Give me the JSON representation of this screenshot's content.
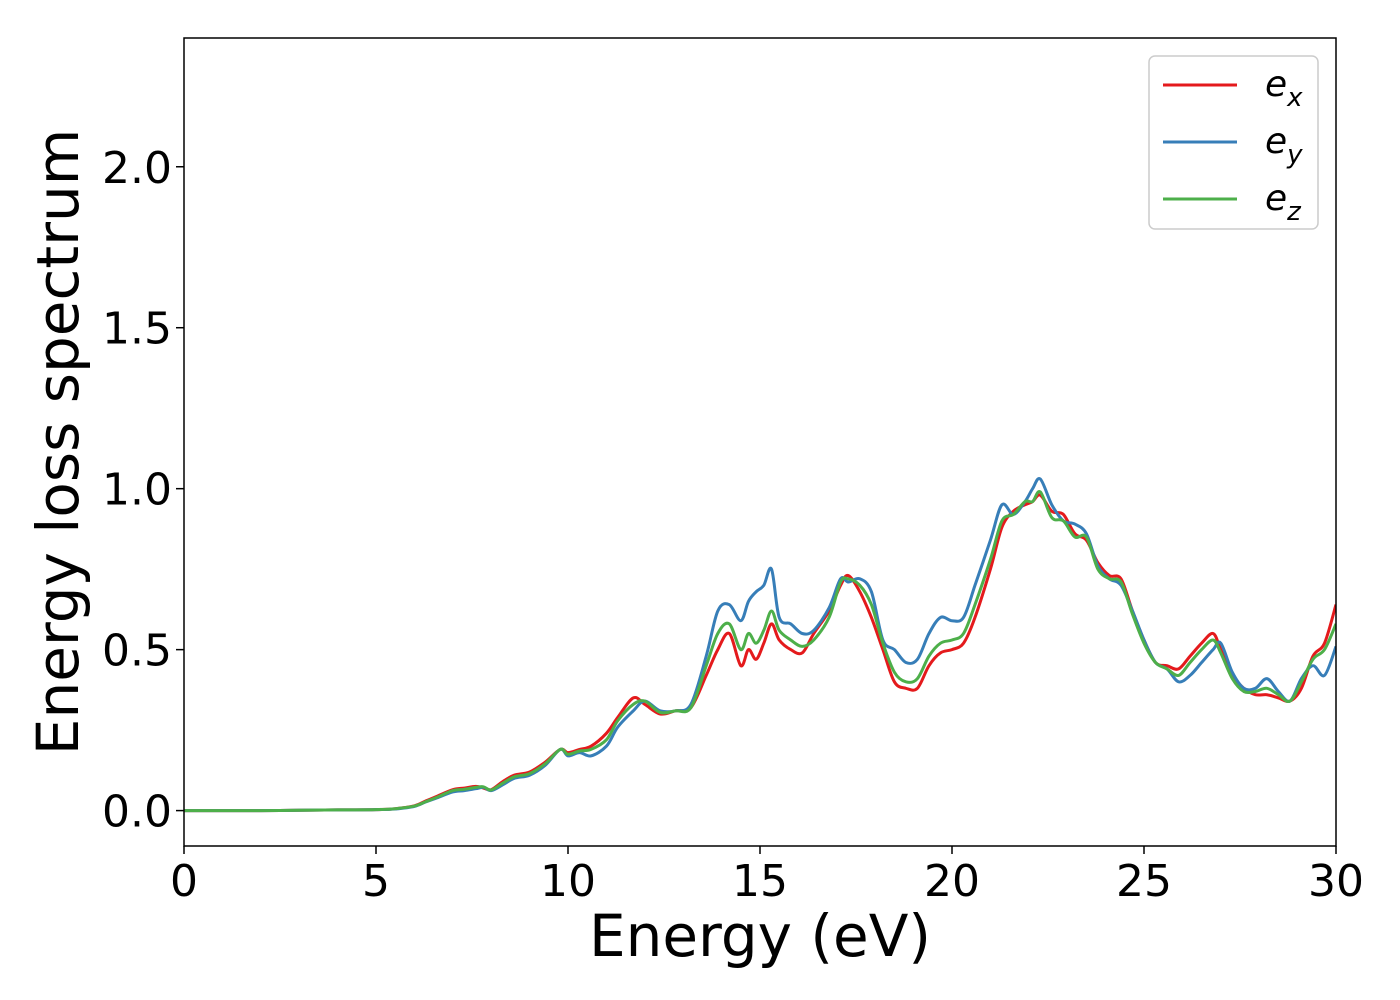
{
  "chart_data": {
    "type": "line",
    "xlabel": "Energy (eV)",
    "ylabel": "Energy loss spectrum",
    "xlim": [
      0,
      30
    ],
    "ylim": [
      -0.11,
      2.4
    ],
    "xticks": [
      0,
      5,
      10,
      15,
      20,
      25,
      30
    ],
    "xtick_labels": [
      "0",
      "5",
      "10",
      "15",
      "20",
      "25",
      "30"
    ],
    "yticks": [
      0.0,
      0.5,
      1.0,
      1.5,
      2.0
    ],
    "ytick_labels": [
      "0.0",
      "0.5",
      "1.0",
      "1.5",
      "2.0"
    ],
    "grid": false,
    "legend_position": "top-right",
    "series": [
      {
        "name": "e",
        "subscript": "x",
        "color": "#e41a1c",
        "x": [
          0,
          1,
          2,
          3,
          4,
          5,
          5.5,
          6,
          6.3,
          6.6,
          7,
          7.3,
          7.6,
          7.8,
          8,
          8.3,
          8.6,
          9,
          9.4,
          9.8,
          10,
          10.3,
          10.6,
          11,
          11.3,
          11.7,
          12,
          12.4,
          12.8,
          13.2,
          13.6,
          13.9,
          14.2,
          14.5,
          14.7,
          14.9,
          15.1,
          15.3,
          15.5,
          15.8,
          16.1,
          16.4,
          16.8,
          17.1,
          17.3,
          17.6,
          17.9,
          18.2,
          18.5,
          18.8,
          19.1,
          19.4,
          19.7,
          20,
          20.3,
          20.6,
          21,
          21.3,
          21.6,
          21.9,
          22.1,
          22.3,
          22.6,
          22.9,
          23.2,
          23.5,
          23.8,
          24.1,
          24.4,
          24.7,
          25,
          25.3,
          25.6,
          25.9,
          26.2,
          26.5,
          26.8,
          27,
          27.3,
          27.6,
          27.9,
          28.2,
          28.5,
          28.8,
          29.1,
          29.4,
          29.7,
          30
        ],
        "y": [
          0,
          0,
          0,
          0.001,
          0.002,
          0.003,
          0.006,
          0.015,
          0.03,
          0.045,
          0.065,
          0.07,
          0.075,
          0.07,
          0.065,
          0.09,
          0.11,
          0.12,
          0.15,
          0.19,
          0.18,
          0.19,
          0.2,
          0.24,
          0.29,
          0.35,
          0.33,
          0.3,
          0.31,
          0.32,
          0.42,
          0.5,
          0.55,
          0.45,
          0.5,
          0.47,
          0.52,
          0.58,
          0.53,
          0.5,
          0.49,
          0.55,
          0.62,
          0.7,
          0.73,
          0.68,
          0.6,
          0.5,
          0.4,
          0.38,
          0.38,
          0.45,
          0.49,
          0.5,
          0.52,
          0.6,
          0.75,
          0.88,
          0.93,
          0.95,
          0.96,
          0.98,
          0.93,
          0.92,
          0.86,
          0.84,
          0.77,
          0.73,
          0.72,
          0.62,
          0.53,
          0.46,
          0.45,
          0.44,
          0.48,
          0.52,
          0.55,
          0.5,
          0.42,
          0.38,
          0.36,
          0.36,
          0.35,
          0.34,
          0.38,
          0.48,
          0.52,
          0.64
        ]
      },
      {
        "name": "e",
        "subscript": "y",
        "color": "#377eb8",
        "x": [
          0,
          1,
          2,
          3,
          4,
          5,
          5.5,
          6,
          6.3,
          6.6,
          7,
          7.3,
          7.6,
          7.8,
          8,
          8.3,
          8.6,
          9,
          9.4,
          9.8,
          10,
          10.3,
          10.6,
          11,
          11.3,
          11.7,
          12,
          12.4,
          12.8,
          13.2,
          13.6,
          13.9,
          14.2,
          14.5,
          14.7,
          14.9,
          15.1,
          15.3,
          15.5,
          15.8,
          16.1,
          16.4,
          16.8,
          17.1,
          17.3,
          17.6,
          17.9,
          18.2,
          18.5,
          18.8,
          19.1,
          19.4,
          19.7,
          20,
          20.3,
          20.6,
          21,
          21.3,
          21.6,
          21.9,
          22.1,
          22.3,
          22.6,
          22.9,
          23.2,
          23.5,
          23.8,
          24.1,
          24.4,
          24.7,
          25,
          25.3,
          25.6,
          25.9,
          26.2,
          26.5,
          26.8,
          27,
          27.3,
          27.6,
          27.9,
          28.2,
          28.5,
          28.8,
          29.1,
          29.4,
          29.7,
          30
        ],
        "y": [
          0,
          0,
          0,
          0.001,
          0.002,
          0.003,
          0.005,
          0.013,
          0.027,
          0.04,
          0.058,
          0.062,
          0.068,
          0.072,
          0.062,
          0.08,
          0.1,
          0.11,
          0.14,
          0.19,
          0.17,
          0.18,
          0.17,
          0.2,
          0.26,
          0.31,
          0.34,
          0.31,
          0.31,
          0.33,
          0.48,
          0.62,
          0.64,
          0.59,
          0.65,
          0.68,
          0.7,
          0.75,
          0.6,
          0.58,
          0.55,
          0.56,
          0.63,
          0.72,
          0.71,
          0.72,
          0.68,
          0.53,
          0.5,
          0.46,
          0.47,
          0.55,
          0.6,
          0.59,
          0.6,
          0.7,
          0.84,
          0.95,
          0.92,
          0.96,
          1.0,
          1.03,
          0.95,
          0.9,
          0.89,
          0.86,
          0.76,
          0.72,
          0.7,
          0.62,
          0.53,
          0.46,
          0.44,
          0.4,
          0.42,
          0.46,
          0.5,
          0.52,
          0.43,
          0.38,
          0.38,
          0.41,
          0.37,
          0.34,
          0.41,
          0.45,
          0.42,
          0.51
        ]
      },
      {
        "name": "e",
        "subscript": "z",
        "color": "#4daf4a",
        "x": [
          0,
          1,
          2,
          3,
          4,
          5,
          5.5,
          6,
          6.3,
          6.6,
          7,
          7.3,
          7.6,
          7.8,
          8,
          8.3,
          8.6,
          9,
          9.4,
          9.8,
          10,
          10.3,
          10.6,
          11,
          11.3,
          11.7,
          12,
          12.4,
          12.8,
          13.2,
          13.6,
          13.9,
          14.2,
          14.5,
          14.7,
          14.9,
          15.1,
          15.3,
          15.5,
          15.8,
          16.1,
          16.4,
          16.8,
          17.1,
          17.3,
          17.6,
          17.9,
          18.2,
          18.5,
          18.8,
          19.1,
          19.4,
          19.7,
          20,
          20.3,
          20.6,
          21,
          21.3,
          21.6,
          21.9,
          22.1,
          22.3,
          22.6,
          22.9,
          23.2,
          23.5,
          23.8,
          24.1,
          24.4,
          24.7,
          25,
          25.3,
          25.6,
          25.9,
          26.2,
          26.5,
          26.8,
          27,
          27.3,
          27.6,
          27.9,
          28.2,
          28.5,
          28.8,
          29.1,
          29.4,
          29.7,
          30
        ],
        "y": [
          0,
          0,
          0,
          0.001,
          0.002,
          0.003,
          0.006,
          0.014,
          0.028,
          0.042,
          0.062,
          0.066,
          0.072,
          0.074,
          0.064,
          0.085,
          0.105,
          0.115,
          0.145,
          0.19,
          0.175,
          0.185,
          0.19,
          0.22,
          0.28,
          0.33,
          0.34,
          0.305,
          0.31,
          0.32,
          0.45,
          0.55,
          0.58,
          0.5,
          0.55,
          0.52,
          0.56,
          0.62,
          0.56,
          0.53,
          0.51,
          0.53,
          0.6,
          0.71,
          0.72,
          0.7,
          0.64,
          0.52,
          0.43,
          0.4,
          0.41,
          0.48,
          0.52,
          0.53,
          0.55,
          0.64,
          0.78,
          0.9,
          0.92,
          0.96,
          0.96,
          0.99,
          0.91,
          0.9,
          0.85,
          0.85,
          0.75,
          0.72,
          0.71,
          0.61,
          0.52,
          0.46,
          0.44,
          0.42,
          0.46,
          0.5,
          0.53,
          0.49,
          0.41,
          0.37,
          0.37,
          0.38,
          0.36,
          0.34,
          0.4,
          0.47,
          0.5,
          0.58
        ]
      }
    ]
  }
}
